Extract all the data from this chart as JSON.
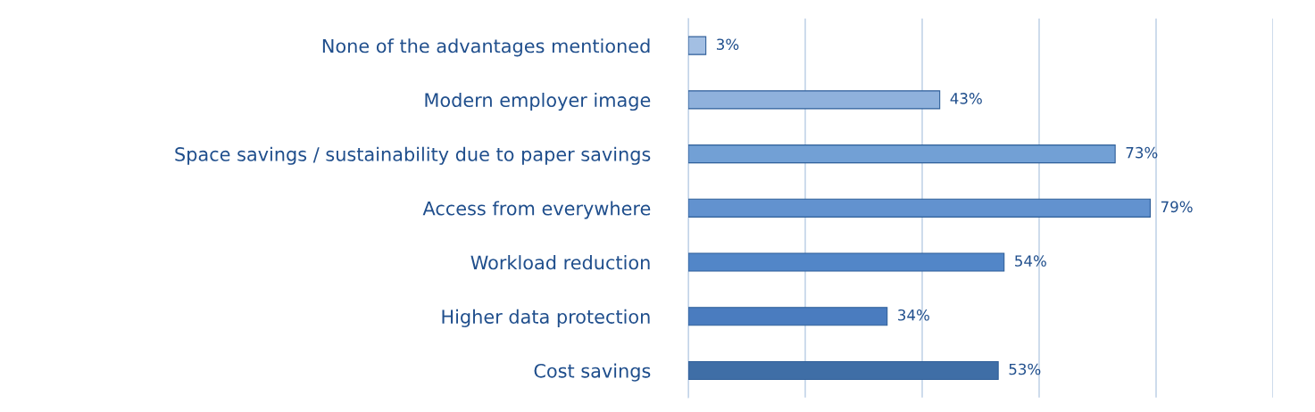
{
  "chart_data": {
    "type": "bar",
    "orientation": "horizontal",
    "categories": [
      "None of the advantages mentioned",
      "Modern employer image",
      "Space savings / sustainability due to paper savings",
      "Access from everywhere",
      "Workload reduction",
      "Higher data protection",
      "Cost savings"
    ],
    "values": [
      3,
      43,
      73,
      79,
      54,
      34,
      53
    ],
    "value_labels": [
      "3%",
      "43%",
      "73%",
      "79%",
      "54%",
      "34%",
      "53%"
    ],
    "colors": [
      "#a3bfe3",
      "#8fb1dc",
      "#72a0d5",
      "#6292cf",
      "#5286c8",
      "#4a7cbf",
      "#3f6ea6"
    ],
    "xlim": [
      0,
      100
    ],
    "xticks": [
      {
        "value": 0,
        "label": null
      },
      {
        "value": 20,
        "label": null
      },
      {
        "value": 40,
        "label": null
      },
      {
        "value": 60,
        "label": null
      },
      {
        "value": 80,
        "label": null
      },
      {
        "value": 100,
        "label": null
      }
    ],
    "grid": "x",
    "tick_labels": "y"
  }
}
